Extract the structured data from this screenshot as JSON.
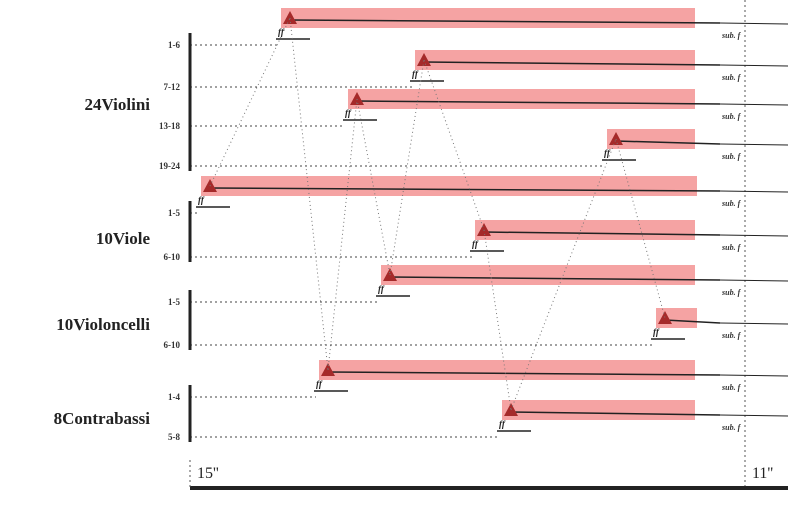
{
  "groups": [
    {
      "name": "24Violini",
      "rows": [
        {
          "label": "1-6",
          "dynamic": "ff",
          "ending": "sub. f"
        },
        {
          "label": "7-12",
          "dynamic": "ff",
          "ending": "sub. f"
        },
        {
          "label": "13-18",
          "dynamic": "ff",
          "ending": "sub. f"
        },
        {
          "label": "19-24",
          "dynamic": "ff",
          "ending": "sub. f"
        }
      ]
    },
    {
      "name": "10Viole",
      "rows": [
        {
          "label": "1-5",
          "dynamic": "ff",
          "ending": "sub. f"
        },
        {
          "label": "6-10",
          "dynamic": "ff",
          "ending": "sub. f"
        }
      ]
    },
    {
      "name": "10Violoncelli",
      "rows": [
        {
          "label": "1-5",
          "dynamic": "ff",
          "ending": "sub. f"
        },
        {
          "label": "6-10",
          "dynamic": "ff",
          "ending": "sub. f"
        }
      ]
    },
    {
      "name": "8Contrabassi",
      "rows": [
        {
          "label": "1-4",
          "dynamic": "ff",
          "ending": "sub. f"
        },
        {
          "label": "5-8",
          "dynamic": "ff",
          "ending": "sub. f"
        }
      ]
    }
  ],
  "timeline": {
    "start": "15''",
    "end": "11''"
  }
}
